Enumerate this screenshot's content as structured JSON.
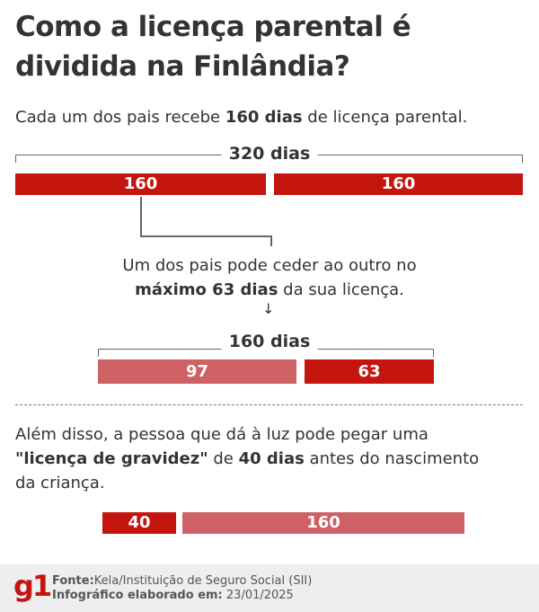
{
  "title": "Como a licença parental é dividida na Finlândia?",
  "intro": {
    "pre": "Cada um dos pais recebe ",
    "bold": "160 dias",
    "post": " de licença parental."
  },
  "section1": {
    "bracket_label": "320 dias",
    "bars": [
      {
        "value": 160,
        "color": "#c4150f"
      },
      {
        "value": 160,
        "color": "#c4150f"
      }
    ]
  },
  "transfer_note": {
    "line1": "Um dos pais pode ceder ao outro no",
    "bold": "máximo 63 dias",
    "post": " da sua licença.",
    "arrow": "↓"
  },
  "section2": {
    "bracket_label": "160 dias",
    "bars": [
      {
        "value": 97,
        "color": "#cd6164"
      },
      {
        "value": 63,
        "color": "#c4150f"
      }
    ]
  },
  "pregnancy_note": {
    "pre": "Além disso, a pessoa que dá à luz pode pegar uma ",
    "bold1": "\"licença de gravidez\"",
    "mid": " de ",
    "bold2": "40 dias",
    "post": " antes do nascimento da criança."
  },
  "section3": {
    "bars": [
      {
        "value": 40,
        "color": "#c4150f"
      },
      {
        "value": 160,
        "color": "#cd6164"
      }
    ]
  },
  "footer": {
    "logo": "g1",
    "source_label": "Fonte:",
    "source": "Kela/Instituição de Seguro Social (SII)",
    "date_label": "Infográfico elaborado em:",
    "date": " 23/01/2025"
  }
}
